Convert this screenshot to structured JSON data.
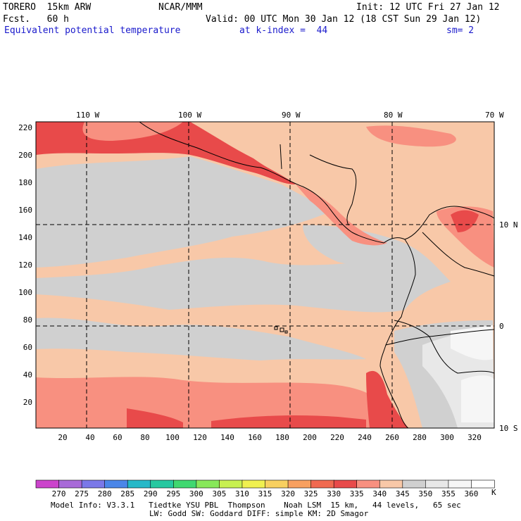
{
  "header": {
    "model": "TORERO  15km ARW",
    "center": "NCAR/MMM",
    "init": "Init: 12 UTC Fri 27 Jan 12",
    "fcst": "Fcst.   60 h",
    "valid": "Valid: 00 UTC Mon 30 Jan 12 (18 CST Sun 29 Jan 12)",
    "field": "Equivalent potential temperature",
    "level": "at k-index =  44",
    "smooth": "sm= 2"
  },
  "map": {
    "top_lon_labels": [
      "110 W",
      "100 W",
      "90 W",
      "80 W",
      "70 W"
    ],
    "right_lat_labels": [
      "10 N",
      "0",
      "10 S"
    ],
    "y_ticks": [
      "220",
      "200",
      "180",
      "160",
      "140",
      "120",
      "100",
      "80",
      "60",
      "40",
      "20"
    ],
    "x_ticks": [
      "20",
      "40",
      "60",
      "80",
      "100",
      "120",
      "140",
      "160",
      "180",
      "200",
      "220",
      "240",
      "260",
      "280",
      "300",
      "320"
    ]
  },
  "colorbar": {
    "labels": [
      "270",
      "275",
      "280",
      "285",
      "290",
      "295",
      "300",
      "305",
      "310",
      "315",
      "320",
      "325",
      "330",
      "335",
      "340",
      "345",
      "350",
      "355",
      "360"
    ],
    "unit": "K",
    "colors": [
      "#cc44cc",
      "#a86ad8",
      "#7a78e8",
      "#4a86e8",
      "#26b8c8",
      "#26c8a0",
      "#40d870",
      "#88e85a",
      "#c8f050",
      "#f0f050",
      "#f8d060",
      "#f8a060",
      "#f06a50",
      "#e84a4a",
      "#f89080",
      "#f8c8a8",
      "#d0d0d0",
      "#e8e8e8",
      "#f6f6f6",
      "#ffffff"
    ]
  },
  "footer": {
    "line1": "Model Info: V3.3.1   Tiedtke YSU PBL  Thompson    Noah LSM  15 km,   44 levels,   65 sec",
    "line2": "LW: Godd SW: Goddard DIFF: simple KM: 2D Smagor"
  }
}
